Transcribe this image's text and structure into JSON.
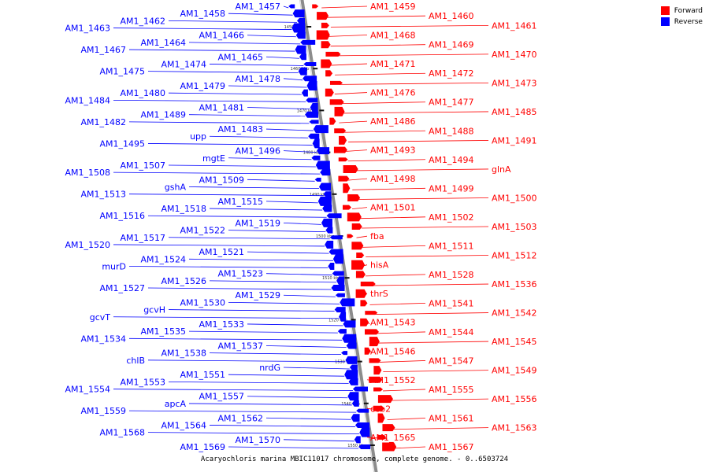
{
  "legend": {
    "forward_label": "Forward",
    "reverse_label": "Reverse",
    "forward_color": "#ff0000",
    "reverse_color": "#0000ff"
  },
  "caption": "Acaryochloris marina MBIC11017 chromosome, complete genome. - 0..6503724",
  "ticks": [
    "1450 kbp",
    "1460 kbp",
    "1470 kbp",
    "1480 kbp",
    "1490 kbp",
    "1500 kbp",
    "1510 kbp",
    "1520 kbp",
    "1530 kbp",
    "1540 kbp",
    "1550 kbp"
  ],
  "genes": {
    "reverse": [
      "AM1_1457",
      "AM1_1458",
      "AM1_1462",
      "AM1_1463",
      "AM1_1466",
      "AM1_1464",
      "AM1_1467",
      "AM1_1465",
      "AM1_1474",
      "AM1_1475",
      "AM1_1478",
      "AM1_1479",
      "AM1_1480",
      "AM1_1484",
      "AM1_1481",
      "AM1_1489",
      "AM1_1482",
      "AM1_1483",
      "upp",
      "AM1_1495",
      "AM1_1496",
      "mgtE",
      "AM1_1507",
      "AM1_1508",
      "AM1_1509",
      "gshA",
      "AM1_1513",
      "AM1_1515",
      "AM1_1518",
      "AM1_1516",
      "AM1_1519",
      "AM1_1522",
      "AM1_1517",
      "AM1_1520",
      "AM1_1521",
      "AM1_1524",
      "murD",
      "AM1_1523",
      "AM1_1526",
      "AM1_1527",
      "AM1_1529",
      "AM1_1530",
      "gcvH",
      "gcvT",
      "AM1_1533",
      "AM1_1535",
      "AM1_1534",
      "AM1_1537",
      "AM1_1538",
      "chlB",
      "nrdG",
      "AM1_1551",
      "AM1_1553",
      "AM1_1554",
      "AM1_1557",
      "apcA",
      "AM1_1559",
      "AM1_1562",
      "AM1_1564",
      "AM1_1568",
      "AM1_1570",
      "AM1_1569"
    ],
    "forward": [
      "AM1_1459",
      "AM1_1460",
      "AM1_1461",
      "AM1_1468",
      "AM1_1469",
      "AM1_1470",
      "AM1_1471",
      "AM1_1472",
      "AM1_1473",
      "AM1_1476",
      "AM1_1477",
      "AM1_1485",
      "AM1_1486",
      "AM1_1488",
      "AM1_1491",
      "AM1_1493",
      "AM1_1494",
      "glnA",
      "AM1_1498",
      "AM1_1499",
      "AM1_1500",
      "AM1_1501",
      "AM1_1502",
      "AM1_1503",
      "fba",
      "AM1_1511",
      "AM1_1512",
      "hisA",
      "AM1_1528",
      "AM1_1536",
      "thrS",
      "AM1_1541",
      "AM1_1542",
      "AM1_1543",
      "AM1_1544",
      "AM1_1545",
      "AM1_1546",
      "AM1_1547",
      "AM1_1549",
      "AM1_1552",
      "AM1_1555",
      "AM1_1556",
      "ccb2",
      "AM1_1561",
      "AM1_1563",
      "AM1_1565",
      "AM1_1567"
    ]
  }
}
